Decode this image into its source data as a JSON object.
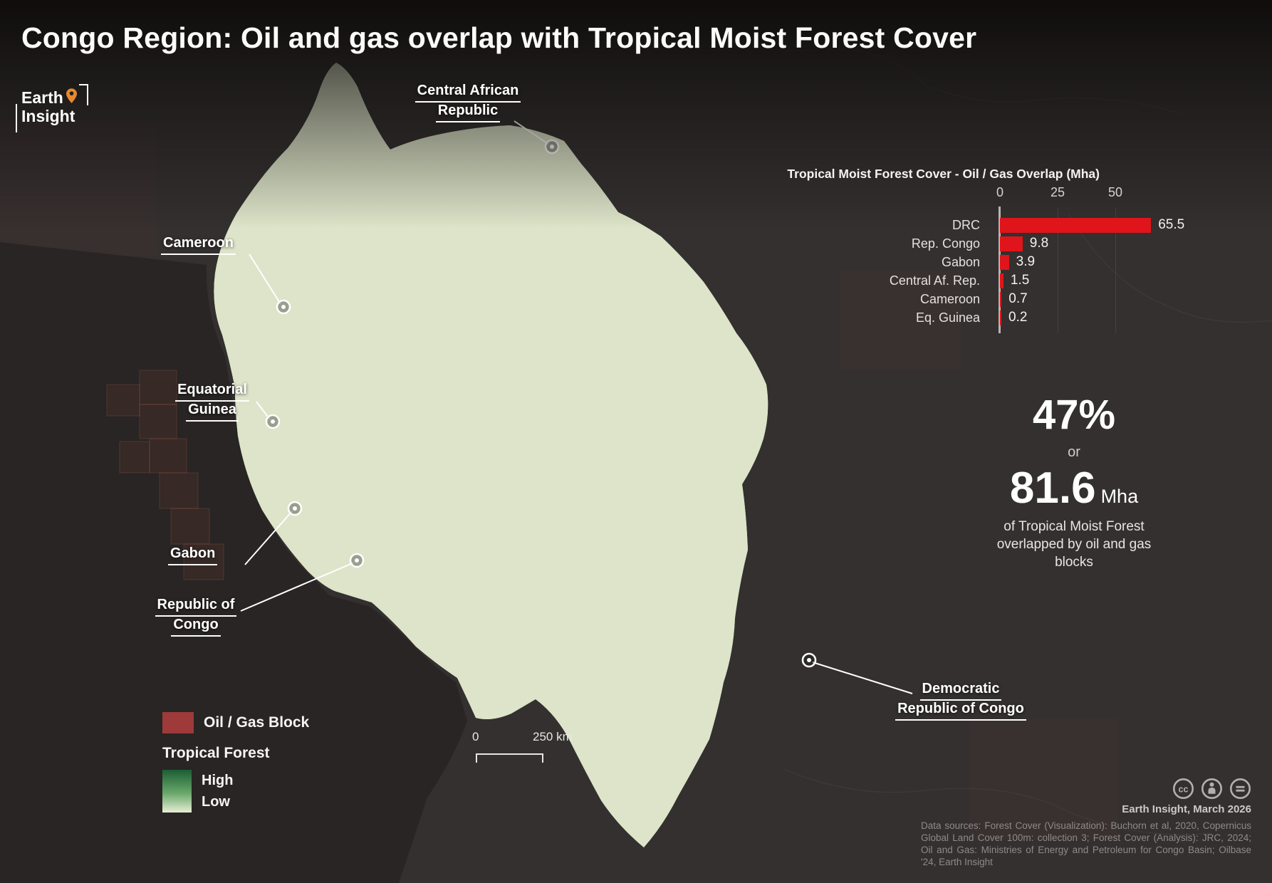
{
  "title": "Congo Region: Oil and gas overlap with Tropical Moist Forest Cover",
  "logo": {
    "line1": "Earth",
    "line2": "Insight"
  },
  "map_labels": [
    {
      "id": "central-african-republic",
      "lines": [
        "Central African",
        "Republic"
      ]
    },
    {
      "id": "cameroon",
      "lines": [
        "Cameroon"
      ]
    },
    {
      "id": "equatorial-guinea",
      "lines": [
        "Equatorial",
        "Guinea"
      ]
    },
    {
      "id": "gabon",
      "lines": [
        "Gabon"
      ]
    },
    {
      "id": "republic-of-congo",
      "lines": [
        "Republic of",
        "Congo"
      ]
    },
    {
      "id": "democratic-republic-of-congo",
      "lines": [
        "Democratic",
        "Republic of Congo"
      ]
    }
  ],
  "chart_data": {
    "type": "bar",
    "orientation": "horizontal",
    "title": "Tropical Moist Forest Cover - Oil / Gas Overlap (Mha)",
    "categories": [
      "DRC",
      "Rep. Congo",
      "Gabon",
      "Central Af. Rep.",
      "Cameroon",
      "Eq. Guinea"
    ],
    "values": [
      65.5,
      9.8,
      3.9,
      1.5,
      0.7,
      0.2
    ],
    "x_ticks": [
      0,
      25,
      50
    ],
    "xlim": [
      0,
      70
    ],
    "unit": "Mha",
    "bar_color": "#e0151b",
    "grid": true,
    "legend_position": "none"
  },
  "stat": {
    "percent": "47%",
    "or_label": "or",
    "value": "81.6",
    "unit": "Mha",
    "description": "of Tropical Moist Forest overlapped by oil and gas blocks"
  },
  "legend": {
    "oil_gas_label": "Oil / Gas Block",
    "oil_gas_color": "#9e3a3a",
    "forest_title": "Tropical Forest",
    "forest_high": "High",
    "forest_low": "Low",
    "forest_gradient": [
      "#1b5e33",
      "#6aa86b",
      "#e7eed4"
    ]
  },
  "scale_bar": {
    "zero": "0",
    "distance": "250 km"
  },
  "attribution": {
    "credit": "Earth Insight,  March 2026",
    "sources": "Data sources: Forest Cover (Visualization): Buchorn et al, 2020, Copernicus Global Land Cover 100m: collection 3; Forest Cover (Analysis): JRC, 2024; Oil and Gas: Ministries of Energy and Petroleum for Congo Basin; Oilbase '24, Earth Insight",
    "license_icons": [
      "cc",
      "by",
      "nd"
    ]
  },
  "colors": {
    "background": "#33302f",
    "map_block_salmon": "#c4796b",
    "map_block_brick": "#8a4136",
    "forest_dark": "#1f6038",
    "water": "#0c3144",
    "bar_red": "#e0151b"
  }
}
